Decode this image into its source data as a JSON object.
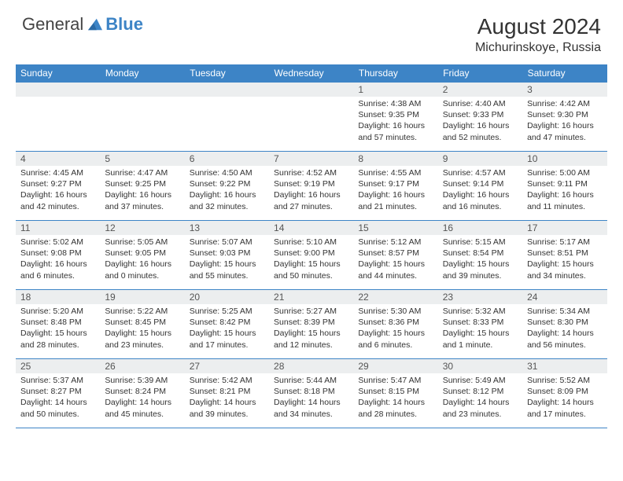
{
  "brand": {
    "part1": "General",
    "part2": "Blue"
  },
  "title": "August 2024",
  "subtitle": "Michurinskoye, Russia",
  "colors": {
    "header_bg": "#3d84c6",
    "header_text": "#ffffff",
    "daynum_bg": "#eceeef",
    "border": "#3d84c6",
    "body_text": "#333333",
    "page_bg": "#ffffff"
  },
  "typography": {
    "title_fontsize": 28,
    "subtitle_fontsize": 16,
    "header_fontsize": 12,
    "cell_fontsize": 10.5
  },
  "days_of_week": [
    "Sunday",
    "Monday",
    "Tuesday",
    "Wednesday",
    "Thursday",
    "Friday",
    "Saturday"
  ],
  "weeks": [
    [
      null,
      null,
      null,
      null,
      {
        "n": "1",
        "sr": "4:38 AM",
        "ss": "9:35 PM",
        "dl": "16 hours and 57 minutes."
      },
      {
        "n": "2",
        "sr": "4:40 AM",
        "ss": "9:33 PM",
        "dl": "16 hours and 52 minutes."
      },
      {
        "n": "3",
        "sr": "4:42 AM",
        "ss": "9:30 PM",
        "dl": "16 hours and 47 minutes."
      }
    ],
    [
      {
        "n": "4",
        "sr": "4:45 AM",
        "ss": "9:27 PM",
        "dl": "16 hours and 42 minutes."
      },
      {
        "n": "5",
        "sr": "4:47 AM",
        "ss": "9:25 PM",
        "dl": "16 hours and 37 minutes."
      },
      {
        "n": "6",
        "sr": "4:50 AM",
        "ss": "9:22 PM",
        "dl": "16 hours and 32 minutes."
      },
      {
        "n": "7",
        "sr": "4:52 AM",
        "ss": "9:19 PM",
        "dl": "16 hours and 27 minutes."
      },
      {
        "n": "8",
        "sr": "4:55 AM",
        "ss": "9:17 PM",
        "dl": "16 hours and 21 minutes."
      },
      {
        "n": "9",
        "sr": "4:57 AM",
        "ss": "9:14 PM",
        "dl": "16 hours and 16 minutes."
      },
      {
        "n": "10",
        "sr": "5:00 AM",
        "ss": "9:11 PM",
        "dl": "16 hours and 11 minutes."
      }
    ],
    [
      {
        "n": "11",
        "sr": "5:02 AM",
        "ss": "9:08 PM",
        "dl": "16 hours and 6 minutes."
      },
      {
        "n": "12",
        "sr": "5:05 AM",
        "ss": "9:05 PM",
        "dl": "16 hours and 0 minutes."
      },
      {
        "n": "13",
        "sr": "5:07 AM",
        "ss": "9:03 PM",
        "dl": "15 hours and 55 minutes."
      },
      {
        "n": "14",
        "sr": "5:10 AM",
        "ss": "9:00 PM",
        "dl": "15 hours and 50 minutes."
      },
      {
        "n": "15",
        "sr": "5:12 AM",
        "ss": "8:57 PM",
        "dl": "15 hours and 44 minutes."
      },
      {
        "n": "16",
        "sr": "5:15 AM",
        "ss": "8:54 PM",
        "dl": "15 hours and 39 minutes."
      },
      {
        "n": "17",
        "sr": "5:17 AM",
        "ss": "8:51 PM",
        "dl": "15 hours and 34 minutes."
      }
    ],
    [
      {
        "n": "18",
        "sr": "5:20 AM",
        "ss": "8:48 PM",
        "dl": "15 hours and 28 minutes."
      },
      {
        "n": "19",
        "sr": "5:22 AM",
        "ss": "8:45 PM",
        "dl": "15 hours and 23 minutes."
      },
      {
        "n": "20",
        "sr": "5:25 AM",
        "ss": "8:42 PM",
        "dl": "15 hours and 17 minutes."
      },
      {
        "n": "21",
        "sr": "5:27 AM",
        "ss": "8:39 PM",
        "dl": "15 hours and 12 minutes."
      },
      {
        "n": "22",
        "sr": "5:30 AM",
        "ss": "8:36 PM",
        "dl": "15 hours and 6 minutes."
      },
      {
        "n": "23",
        "sr": "5:32 AM",
        "ss": "8:33 PM",
        "dl": "15 hours and 1 minute."
      },
      {
        "n": "24",
        "sr": "5:34 AM",
        "ss": "8:30 PM",
        "dl": "14 hours and 56 minutes."
      }
    ],
    [
      {
        "n": "25",
        "sr": "5:37 AM",
        "ss": "8:27 PM",
        "dl": "14 hours and 50 minutes."
      },
      {
        "n": "26",
        "sr": "5:39 AM",
        "ss": "8:24 PM",
        "dl": "14 hours and 45 minutes."
      },
      {
        "n": "27",
        "sr": "5:42 AM",
        "ss": "8:21 PM",
        "dl": "14 hours and 39 minutes."
      },
      {
        "n": "28",
        "sr": "5:44 AM",
        "ss": "8:18 PM",
        "dl": "14 hours and 34 minutes."
      },
      {
        "n": "29",
        "sr": "5:47 AM",
        "ss": "8:15 PM",
        "dl": "14 hours and 28 minutes."
      },
      {
        "n": "30",
        "sr": "5:49 AM",
        "ss": "8:12 PM",
        "dl": "14 hours and 23 minutes."
      },
      {
        "n": "31",
        "sr": "5:52 AM",
        "ss": "8:09 PM",
        "dl": "14 hours and 17 minutes."
      }
    ]
  ],
  "labels": {
    "sunrise": "Sunrise:",
    "sunset": "Sunset:",
    "daylight": "Daylight:"
  }
}
